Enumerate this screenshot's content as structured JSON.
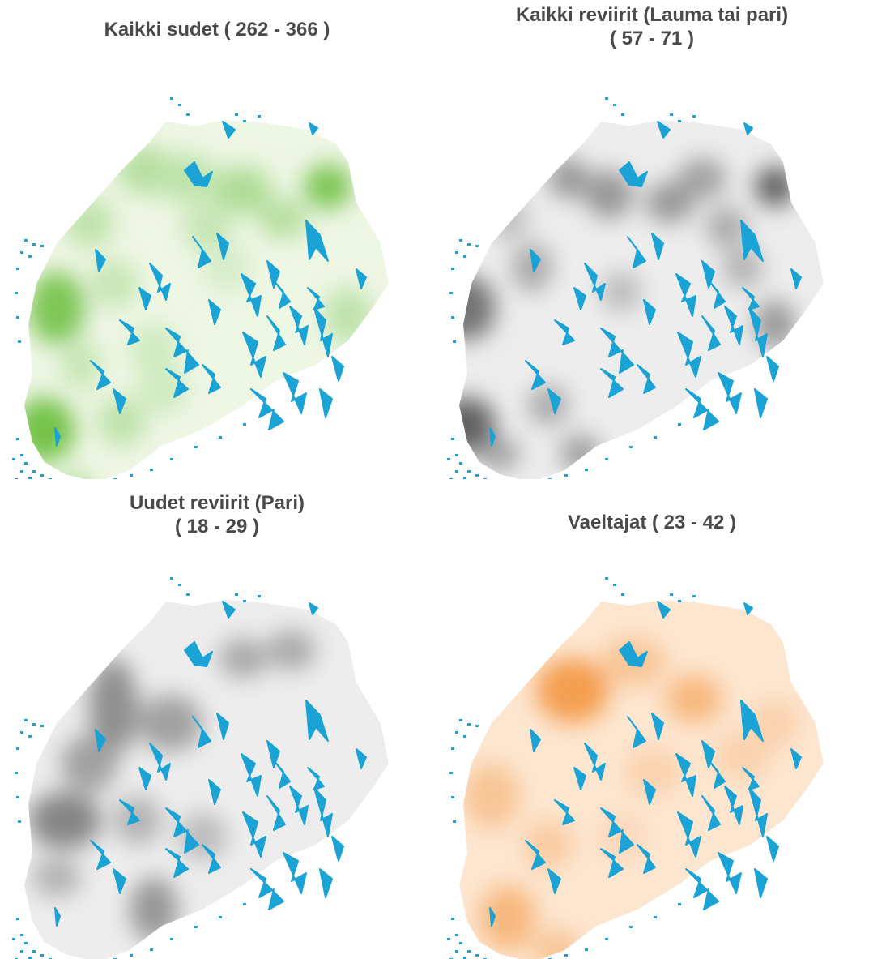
{
  "panels": [
    {
      "title_line1": "Kaikki sudet ( 262 - 366 )",
      "title_line2": "",
      "ramp_color": "#5cb82a",
      "theme": "green"
    },
    {
      "title_line1": "Kaikki reviirit (Lauma tai pari)",
      "title_line2": "( 57 - 71 )",
      "ramp_color": "#4a4a4a",
      "theme": "gray"
    },
    {
      "title_line1": "Uudet reviirit (Pari)",
      "title_line2": "( 18 - 29 )",
      "ramp_color": "#4a4a4a",
      "theme": "gray"
    },
    {
      "title_line1": "Vaeltajat ( 23 - 42 )",
      "title_line2": "",
      "ramp_color": "#f07d14",
      "theme": "orange"
    }
  ],
  "colors": {
    "lakes": "#1aa3d4",
    "background": "#ffffff",
    "title": "#4a4a4a"
  }
}
